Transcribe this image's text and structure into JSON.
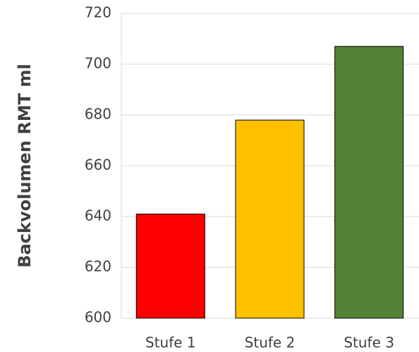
{
  "chart_data": {
    "type": "bar",
    "y_label": "Backvolumen RMT ml",
    "categories": [
      "Stufe 1",
      "Stufe 2",
      "Stufe 3"
    ],
    "values": [
      641,
      678,
      707
    ],
    "colors": [
      "#ff0000",
      "#ffc000",
      "#548235"
    ],
    "ylim": [
      600,
      720
    ],
    "yticks": [
      600,
      620,
      640,
      660,
      680,
      700,
      720
    ],
    "grid": true
  }
}
